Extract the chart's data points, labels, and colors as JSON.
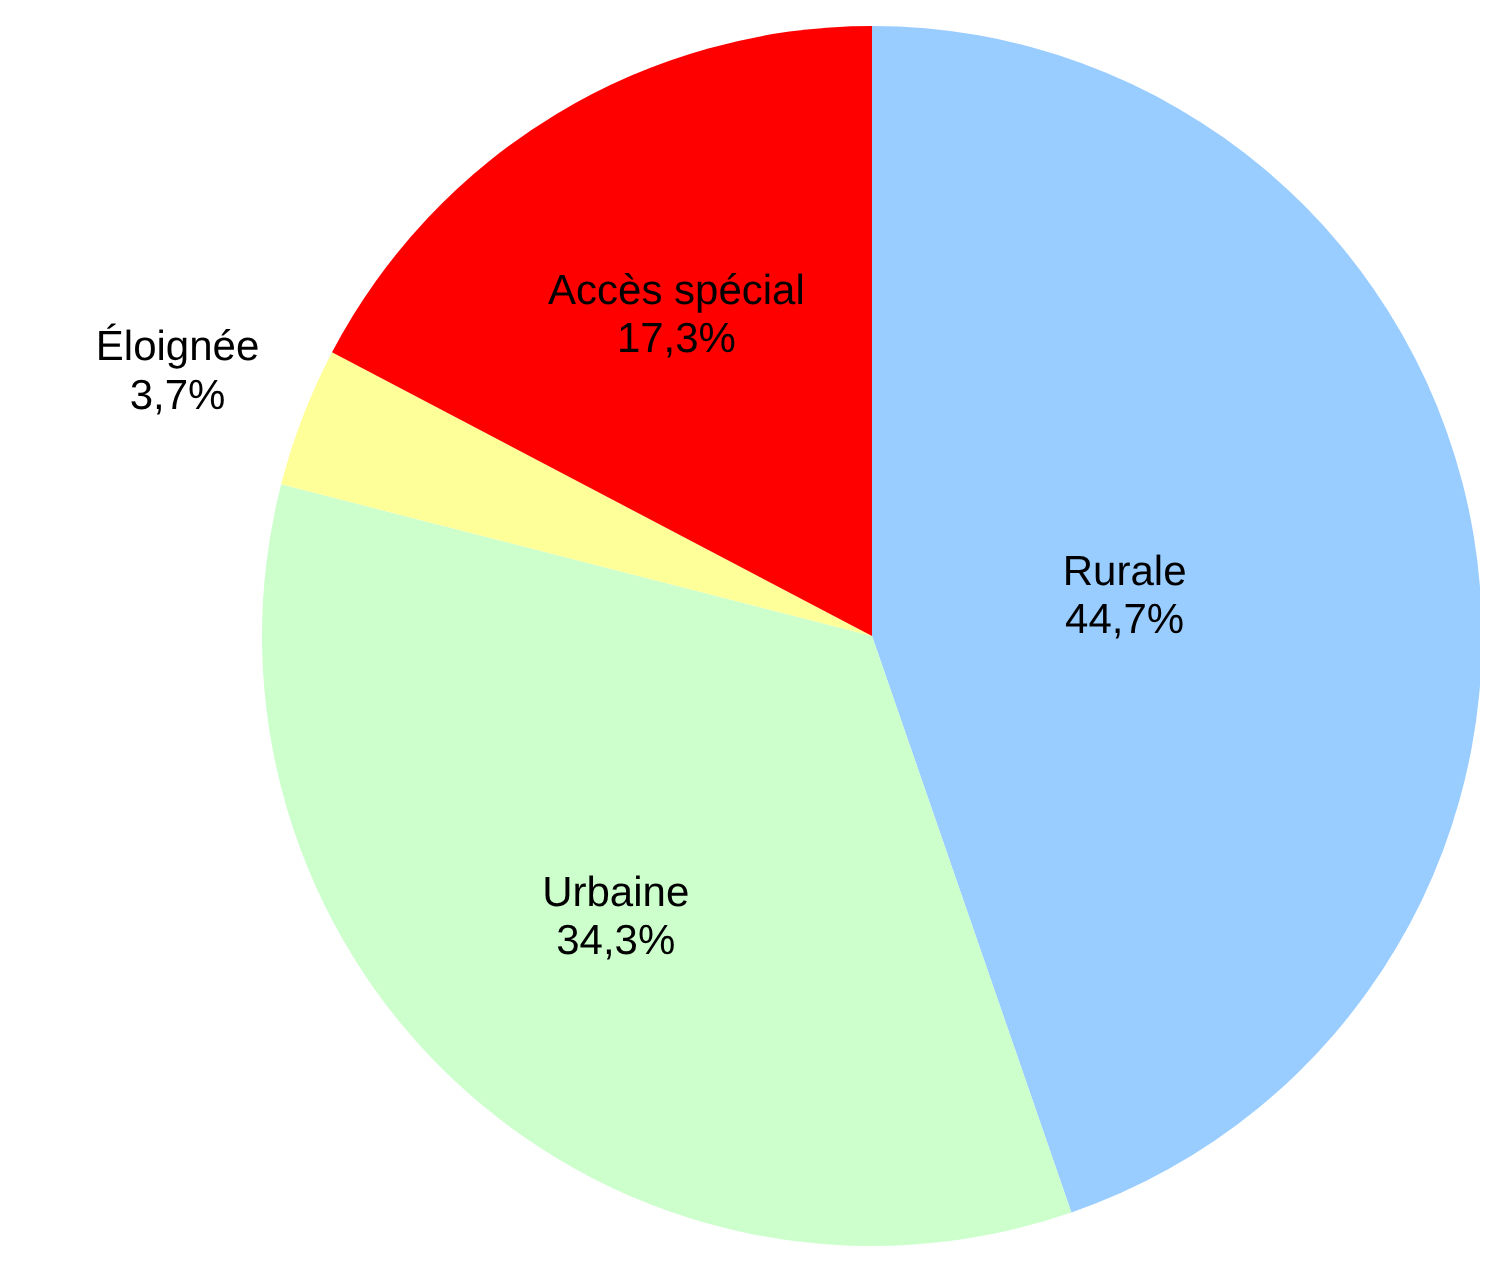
{
  "chart_data": {
    "type": "pie",
    "categories": [
      "Rurale",
      "Urbaine",
      "Éloignée",
      "Accès spécial"
    ],
    "values": [
      44.7,
      34.3,
      3.7,
      17.3
    ],
    "colors": [
      "#99ccff",
      "#ccffcc",
      "#ffff99",
      "#ff0000"
    ],
    "value_labels": [
      "44,7%",
      "34,3%",
      "3,7%",
      "17,3%"
    ],
    "legend": false
  }
}
